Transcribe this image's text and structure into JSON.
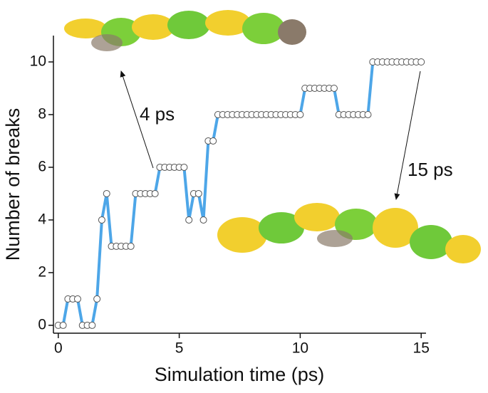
{
  "chart_data": {
    "type": "line",
    "x_label": "Simulation time (ps)",
    "y_label": "Number of breaks",
    "x": [
      0,
      0.2,
      0.4,
      0.6,
      0.8,
      1,
      1.2,
      1.4,
      1.6,
      1.8,
      2,
      2.2,
      2.4,
      2.6,
      2.8,
      3,
      3.2,
      3.4,
      3.6,
      3.8,
      4,
      4.2,
      4.4,
      4.6,
      4.8,
      5,
      5.2,
      5.4,
      5.6,
      5.8,
      6,
      6.2,
      6.4,
      6.6,
      6.8,
      7,
      7.2,
      7.4,
      7.6,
      7.8,
      8,
      8.2,
      8.4,
      8.6,
      8.8,
      9,
      9.2,
      9.4,
      9.6,
      9.8,
      10,
      10.2,
      10.4,
      10.6,
      10.8,
      11,
      11.2,
      11.4,
      11.6,
      11.8,
      12,
      12.2,
      12.4,
      12.6,
      12.8,
      13,
      13.2,
      13.4,
      13.6,
      13.8,
      14,
      14.2,
      14.4,
      14.6,
      14.8,
      15
    ],
    "series": [
      {
        "color": "#4da6e8",
        "marker_color": "#ffffff",
        "values": [
          0,
          0,
          1,
          1,
          1,
          0,
          0,
          0,
          1,
          4,
          5,
          3,
          3,
          3,
          3,
          3,
          5,
          5,
          5,
          5,
          5,
          6,
          6,
          6,
          6,
          6,
          6,
          4,
          5,
          5,
          4,
          7,
          7,
          8,
          8,
          8,
          8,
          8,
          8,
          8,
          8,
          8,
          8,
          8,
          8,
          8,
          8,
          8,
          8,
          8,
          8,
          9,
          9,
          9,
          9,
          9,
          9,
          9,
          8,
          8,
          8,
          8,
          8,
          8,
          8,
          10,
          10,
          10,
          10,
          10,
          10,
          10,
          10,
          10,
          10,
          10
        ]
      }
    ],
    "xlim": [
      -0.2,
      15.2
    ],
    "ylim": [
      -0.3,
      11
    ],
    "xticks": [
      0,
      5,
      10,
      15
    ],
    "yticks": [
      0,
      2,
      4,
      6,
      8,
      10
    ],
    "annotations": [
      {
        "text": "4 ps"
      },
      {
        "text": "15 ps"
      }
    ]
  }
}
